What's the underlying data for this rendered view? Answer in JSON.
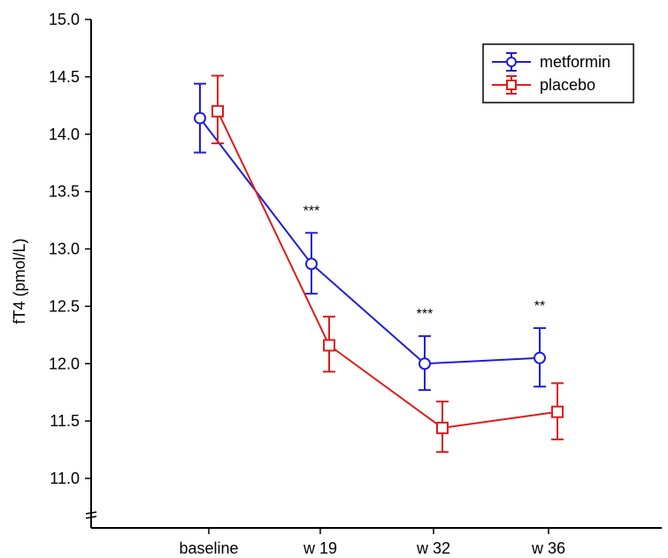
{
  "chart_data": {
    "type": "line",
    "title": "",
    "xlabel": "",
    "ylabel": "fT4 (pmol/L)",
    "categories": [
      "baseline",
      "w 19",
      "w 32",
      "w 36"
    ],
    "ylim": [
      10.6,
      15.0
    ],
    "yticks": [
      "11.0",
      "11.5",
      "12.0",
      "12.5",
      "13.0",
      "13.5",
      "14.0",
      "14.5",
      "15.0"
    ],
    "ytick_values": [
      11.0,
      11.5,
      12.0,
      12.5,
      13.0,
      13.5,
      14.0,
      14.5,
      15.0
    ],
    "grid": false,
    "legend_position": "top-right",
    "series": [
      {
        "name": "metformin",
        "color": "#1f1fd6",
        "marker": "circle",
        "values": [
          14.14,
          12.87,
          12.0,
          12.05
        ],
        "err_low": [
          13.84,
          12.61,
          11.77,
          11.8
        ],
        "err_high": [
          14.44,
          13.14,
          12.24,
          12.31
        ]
      },
      {
        "name": "placebo",
        "color": "#e01b1b",
        "marker": "square",
        "values": [
          14.2,
          12.16,
          11.44,
          11.58
        ],
        "err_low": [
          13.92,
          11.93,
          11.23,
          11.34
        ],
        "err_high": [
          14.51,
          12.41,
          11.67,
          11.83
        ]
      }
    ],
    "annotations": [
      {
        "category": "w 19",
        "text": "***"
      },
      {
        "category": "w 32",
        "text": "***"
      },
      {
        "category": "w 36",
        "text": "**"
      }
    ]
  }
}
